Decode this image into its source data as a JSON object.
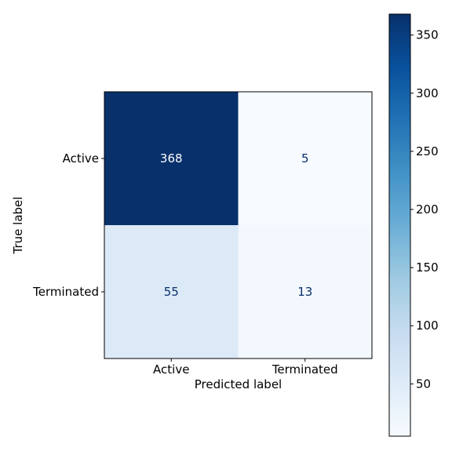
{
  "chart_data": {
    "type": "heatmap",
    "xlabel": "Predicted label",
    "ylabel": "True label",
    "x_categories": [
      "Active",
      "Terminated"
    ],
    "y_categories": [
      "Active",
      "Terminated"
    ],
    "matrix": [
      [
        368,
        5
      ],
      [
        55,
        13
      ]
    ],
    "colorbar": {
      "min": 5,
      "max": 368,
      "ticks": [
        50,
        100,
        150,
        200,
        250,
        300,
        350
      ],
      "colormap": "Blues"
    },
    "grid": false,
    "legend": "colorbar-right"
  },
  "colors": {
    "text_dark": "#08306b",
    "text_light": "#ffffff"
  }
}
